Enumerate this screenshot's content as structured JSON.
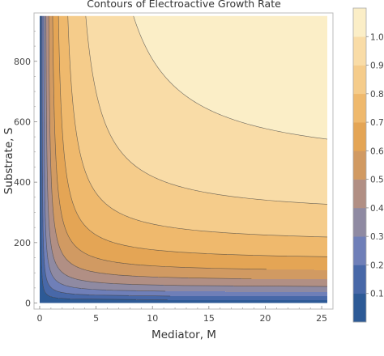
{
  "chart_data": {
    "type": "contour",
    "title": "Contours of Electroactive Growth Rate",
    "xlabel": "Mediator, M",
    "ylabel": "Substrate, S",
    "xlim": [
      -0.5,
      26
    ],
    "ylim": [
      -20,
      960
    ],
    "data_xmin": 0,
    "data_xmax": 25.5,
    "data_ymin": 0,
    "data_ymax": 950,
    "x_ticks": [
      0,
      5,
      10,
      15,
      20,
      25
    ],
    "y_ticks": [
      0,
      200,
      400,
      600,
      800
    ],
    "levels": [
      0.1,
      0.2,
      0.3,
      0.4,
      0.5,
      0.6,
      0.7,
      0.8,
      0.9,
      1.0
    ],
    "level_labels": [
      "0.1",
      "0.2",
      "0.3",
      "0.4",
      "0.5",
      "0.6",
      "0.7",
      "0.8",
      "0.9",
      "1.0"
    ],
    "band_colors": [
      "#2d5a96",
      "#4868a8",
      "#6f7fb8",
      "#8f8aa2",
      "#b18f84",
      "#d19a62",
      "#e4a555",
      "#efb96d",
      "#f5cc8b",
      "#f9dca7",
      "#fbeec7"
    ],
    "contour_line_color": "#3c3c3c",
    "model": "R = 1.25 * (M/(1+M)) * (S/(110+S))",
    "grid": false,
    "colorbar": "right"
  }
}
